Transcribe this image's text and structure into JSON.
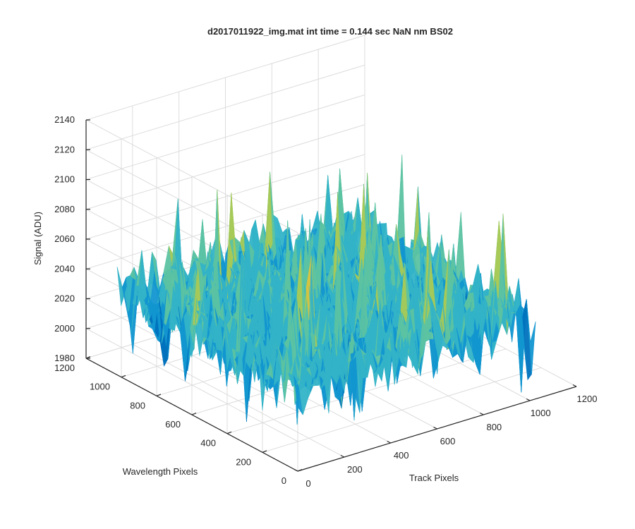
{
  "chart_data": {
    "type": "surface",
    "title": "d2017011922_img.mat int time = 0.144 sec  NaN nm BS02",
    "xlabel": "Track Pixels",
    "ylabel": "Wavelength Pixels",
    "zlabel": "Signal (ADU)",
    "xlim": [
      0,
      1200
    ],
    "ylim": [
      0,
      1200
    ],
    "zlim": [
      1980,
      2140
    ],
    "x_ticks": [
      "0",
      "200",
      "400",
      "600",
      "800",
      "1000",
      "1200"
    ],
    "y_ticks": [
      "0",
      "200",
      "400",
      "600",
      "800",
      "1000",
      "1200"
    ],
    "z_ticks": [
      "1980",
      "2000",
      "2020",
      "2040",
      "2060",
      "2080",
      "2100",
      "2120",
      "2140"
    ],
    "data_extent": {
      "x": [
        0,
        1024
      ],
      "y": [
        0,
        1024
      ]
    },
    "baseline": 2035,
    "noise_amplitude": 12,
    "spike_range": [
      1985,
      2132
    ],
    "grid": true,
    "colormap": [
      "#0072BD",
      "#1296D0",
      "#33B3C7",
      "#5CC3A2",
      "#A6C957",
      "#D9C33F"
    ]
  }
}
